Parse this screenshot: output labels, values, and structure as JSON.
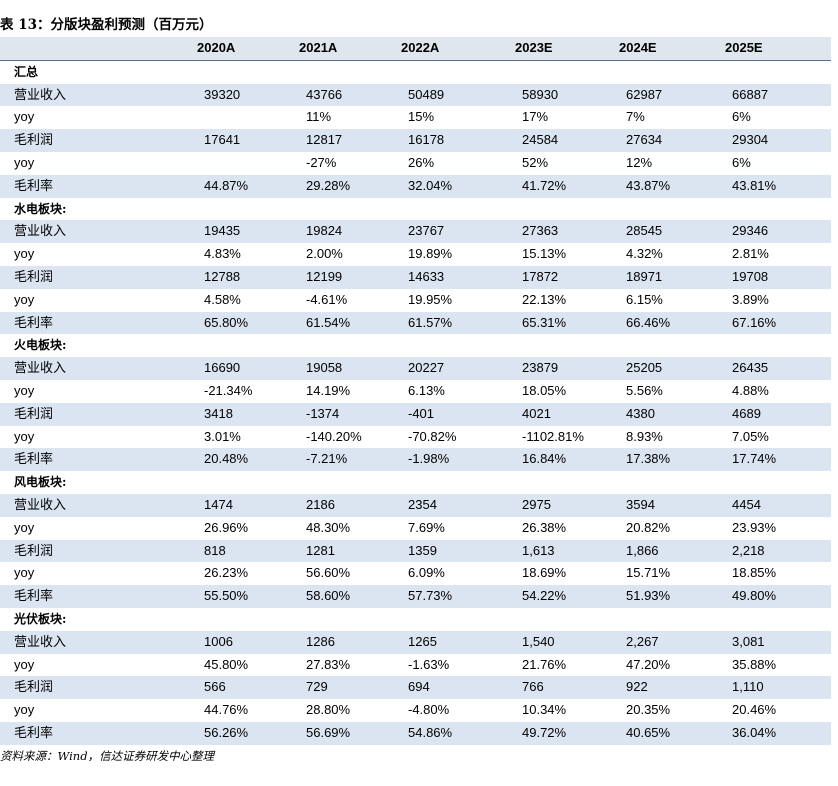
{
  "title": "表 13：分版块盈利预测（百万元）",
  "columns": [
    "2020A",
    "2021A",
    "2022A",
    "2023E",
    "2024E",
    "2025E"
  ],
  "sections": [
    {
      "name": "汇总",
      "rows": [
        {
          "label": "营业收入",
          "values": [
            "39320",
            "43766",
            "50489",
            "58930",
            "62987",
            "66887"
          ]
        },
        {
          "label": "yoy",
          "values": [
            "",
            "11%",
            "15%",
            "17%",
            "7%",
            "6%"
          ]
        },
        {
          "label": "毛利润",
          "values": [
            "17641",
            "12817",
            "16178",
            "24584",
            "27634",
            "29304"
          ]
        },
        {
          "label": "yoy",
          "values": [
            "",
            "-27%",
            "26%",
            "52%",
            "12%",
            "6%"
          ]
        },
        {
          "label": "毛利率",
          "values": [
            "44.87%",
            "29.28%",
            "32.04%",
            "41.72%",
            "43.87%",
            "43.81%"
          ]
        }
      ]
    },
    {
      "name": "水电板块:",
      "rows": [
        {
          "label": "营业收入",
          "values": [
            "19435",
            "19824",
            "23767",
            "27363",
            "28545",
            "29346"
          ]
        },
        {
          "label": "yoy",
          "values": [
            "4.83%",
            "2.00%",
            "19.89%",
            "15.13%",
            "4.32%",
            "2.81%"
          ]
        },
        {
          "label": "毛利润",
          "values": [
            "12788",
            "12199",
            "14633",
            "17872",
            "18971",
            "19708"
          ]
        },
        {
          "label": "yoy",
          "values": [
            "4.58%",
            "-4.61%",
            "19.95%",
            "22.13%",
            "6.15%",
            "3.89%"
          ]
        },
        {
          "label": "毛利率",
          "values": [
            "65.80%",
            "61.54%",
            "61.57%",
            "65.31%",
            "66.46%",
            "67.16%"
          ]
        }
      ]
    },
    {
      "name": "火电板块:",
      "rows": [
        {
          "label": "营业收入",
          "values": [
            "16690",
            "19058",
            "20227",
            "23879",
            "25205",
            "26435"
          ]
        },
        {
          "label": "yoy",
          "values": [
            "-21.34%",
            "14.19%",
            "6.13%",
            "18.05%",
            "5.56%",
            "4.88%"
          ]
        },
        {
          "label": "毛利润",
          "values": [
            "3418",
            "-1374",
            "-401",
            "4021",
            "4380",
            "4689"
          ]
        },
        {
          "label": "yoy",
          "values": [
            "3.01%",
            "-140.20%",
            "-70.82%",
            "-1102.81%",
            "8.93%",
            "7.05%"
          ]
        },
        {
          "label": "毛利率",
          "values": [
            "20.48%",
            "-7.21%",
            "-1.98%",
            "16.84%",
            "17.38%",
            "17.74%"
          ]
        }
      ]
    },
    {
      "name": "风电板块:",
      "rows": [
        {
          "label": "营业收入",
          "values": [
            "1474",
            "2186",
            "2354",
            "2975",
            "3594",
            "4454"
          ]
        },
        {
          "label": "yoy",
          "values": [
            "26.96%",
            "48.30%",
            "7.69%",
            "26.38%",
            "20.82%",
            "23.93%"
          ]
        },
        {
          "label": "毛利润",
          "values": [
            "818",
            "1281",
            "1359",
            "1,613",
            "1,866",
            "2,218"
          ]
        },
        {
          "label": "yoy",
          "values": [
            "26.23%",
            "56.60%",
            "6.09%",
            "18.69%",
            "15.71%",
            "18.85%"
          ]
        },
        {
          "label": "毛利率",
          "values": [
            "55.50%",
            "58.60%",
            "57.73%",
            "54.22%",
            "51.93%",
            "49.80%"
          ]
        }
      ]
    },
    {
      "name": "光伏板块:",
      "rows": [
        {
          "label": "营业收入",
          "values": [
            "1006",
            "1286",
            "1265",
            "1,540",
            "2,267",
            "3,081"
          ]
        },
        {
          "label": "yoy",
          "values": [
            "45.80%",
            "27.83%",
            "-1.63%",
            "21.76%",
            "47.20%",
            "35.88%"
          ]
        },
        {
          "label": "毛利润",
          "values": [
            "566",
            "729",
            "694",
            "766",
            "922",
            "1,110"
          ]
        },
        {
          "label": "yoy",
          "values": [
            "44.76%",
            "28.80%",
            "-4.80%",
            "10.34%",
            "20.35%",
            "20.46%"
          ]
        },
        {
          "label": "毛利率",
          "values": [
            "56.26%",
            "56.69%",
            "54.86%",
            "49.72%",
            "40.65%",
            "36.04%"
          ]
        }
      ]
    }
  ],
  "source": "资料来源：Wind，信达证券研发中心整理",
  "colors": {
    "shade": "#dbe5f1",
    "header": "#dfe6ee",
    "rule": "#5a6f8a"
  }
}
